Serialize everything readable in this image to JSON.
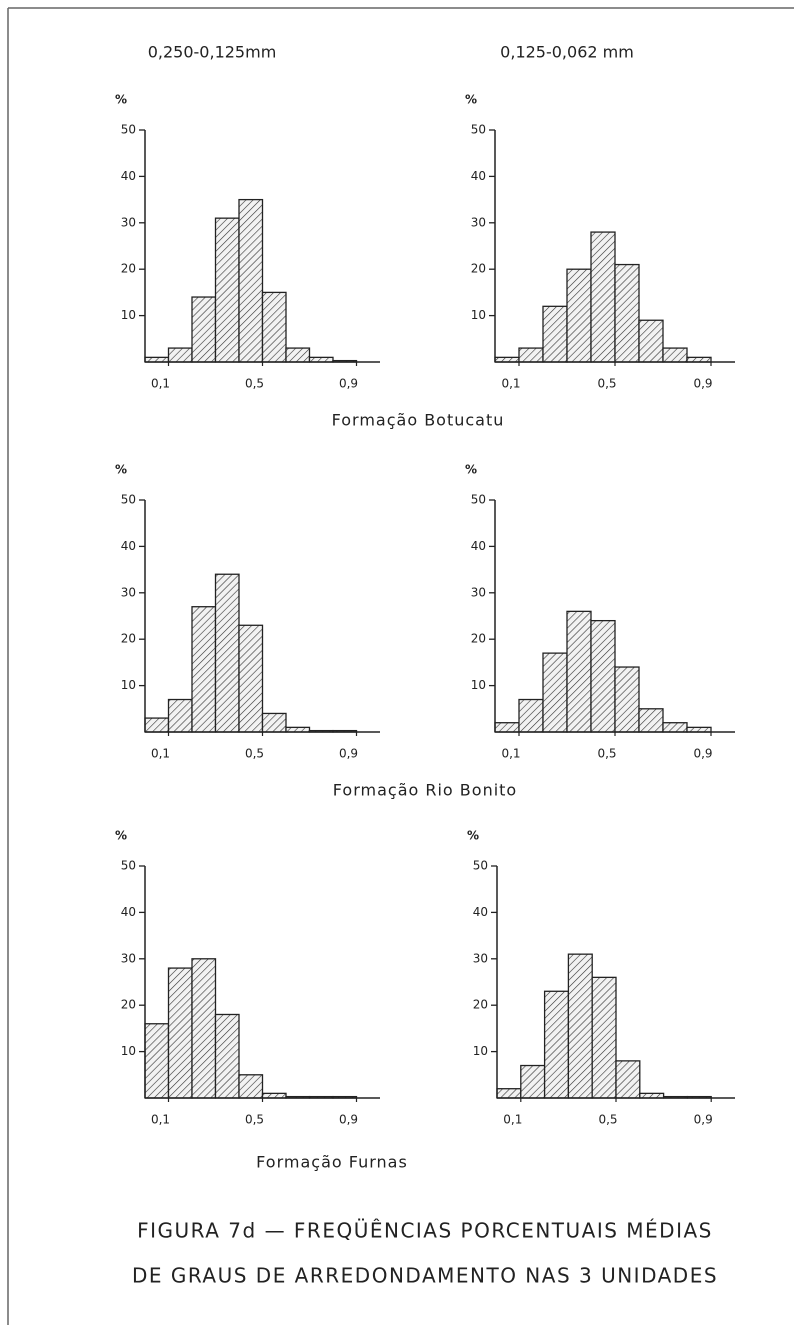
{
  "column_headers": [
    "0,250-0,125mm",
    "0,125-0,062 mm"
  ],
  "formations": [
    "Formação  Botucatu",
    "Formação  Rio  Bonito",
    "Formação  Furnas"
  ],
  "caption": [
    "FIGURA 7d  — FREQÜÊNCIAS  PORCENTUAIS  MÉDIAS",
    "DE GRAUS  DE  ARREDONDAMENTO  NAS 3 UNIDADES"
  ],
  "chart_data": [
    {
      "type": "histogram",
      "ylabel": "%",
      "bins": [
        0,
        0.1,
        0.2,
        0.3,
        0.4,
        0.5,
        0.6,
        0.7,
        0.8,
        0.9,
        1.0
      ],
      "values": [
        1,
        3,
        14,
        31,
        35,
        15,
        3,
        1,
        0.3,
        0
      ],
      "xlim": [
        0,
        1
      ],
      "xticks": [
        {
          "value": 0.1,
          "label": "0,1"
        },
        {
          "value": 0.5,
          "label": "0,5"
        },
        {
          "value": 0.9,
          "label": "0,9"
        }
      ],
      "ylim": [
        0,
        50
      ],
      "yticks": [
        10,
        20,
        30,
        40,
        50
      ]
    },
    {
      "type": "histogram",
      "ylabel": "%",
      "bins": [
        0,
        0.1,
        0.2,
        0.3,
        0.4,
        0.5,
        0.6,
        0.7,
        0.8,
        0.9,
        1.0
      ],
      "values": [
        1,
        3,
        12,
        20,
        28,
        21,
        9,
        3,
        1,
        0
      ],
      "xlim": [
        0,
        1
      ],
      "xticks": [
        {
          "value": 0.1,
          "label": "0,1"
        },
        {
          "value": 0.5,
          "label": "0,5"
        },
        {
          "value": 0.9,
          "label": "0,9"
        }
      ],
      "ylim": [
        0,
        50
      ],
      "yticks": [
        10,
        20,
        30,
        40,
        50
      ]
    },
    {
      "type": "histogram",
      "ylabel": "%",
      "bins": [
        0,
        0.1,
        0.2,
        0.3,
        0.4,
        0.5,
        0.6,
        0.7,
        0.8,
        0.9,
        1.0
      ],
      "values": [
        3,
        7,
        27,
        34,
        23,
        4,
        1,
        0.3,
        0.3,
        0
      ],
      "xlim": [
        0,
        1
      ],
      "xticks": [
        {
          "value": 0.1,
          "label": "0,1"
        },
        {
          "value": 0.5,
          "label": "0,5"
        },
        {
          "value": 0.9,
          "label": "0,9"
        }
      ],
      "ylim": [
        0,
        50
      ],
      "yticks": [
        10,
        20,
        30,
        40,
        50
      ]
    },
    {
      "type": "histogram",
      "ylabel": "%",
      "bins": [
        0,
        0.1,
        0.2,
        0.3,
        0.4,
        0.5,
        0.6,
        0.7,
        0.8,
        0.9,
        1.0
      ],
      "values": [
        2,
        7,
        17,
        26,
        24,
        14,
        5,
        2,
        1,
        0
      ],
      "xlim": [
        0,
        1
      ],
      "xticks": [
        {
          "value": 0.1,
          "label": "0,1"
        },
        {
          "value": 0.5,
          "label": "0,5"
        },
        {
          "value": 0.9,
          "label": "0,9"
        }
      ],
      "ylim": [
        0,
        50
      ],
      "yticks": [
        10,
        20,
        30,
        40,
        50
      ]
    },
    {
      "type": "histogram",
      "ylabel": "%",
      "bins": [
        0,
        0.1,
        0.2,
        0.3,
        0.4,
        0.5,
        0.6,
        0.7,
        0.8,
        0.9,
        1.0
      ],
      "values": [
        16,
        28,
        30,
        18,
        5,
        1,
        0.3,
        0.3,
        0.3,
        0
      ],
      "xlim": [
        0,
        1
      ],
      "xticks": [
        {
          "value": 0.1,
          "label": "0,1"
        },
        {
          "value": 0.5,
          "label": "0,5"
        },
        {
          "value": 0.9,
          "label": "0,9"
        }
      ],
      "ylim": [
        0,
        50
      ],
      "yticks": [
        10,
        20,
        30,
        40,
        50
      ]
    },
    {
      "type": "histogram",
      "ylabel": "%",
      "bins": [
        0,
        0.1,
        0.2,
        0.3,
        0.4,
        0.5,
        0.6,
        0.7,
        0.8,
        0.9,
        1.0
      ],
      "values": [
        2,
        7,
        23,
        31,
        26,
        8,
        1,
        0.3,
        0.3,
        0
      ],
      "xlim": [
        0,
        1
      ],
      "xticks": [
        {
          "value": 0.1,
          "label": "0,1"
        },
        {
          "value": 0.5,
          "label": "0,5"
        },
        {
          "value": 0.9,
          "label": "0,9"
        }
      ],
      "ylim": [
        0,
        50
      ],
      "yticks": [
        10,
        20,
        30,
        40,
        50
      ]
    }
  ]
}
